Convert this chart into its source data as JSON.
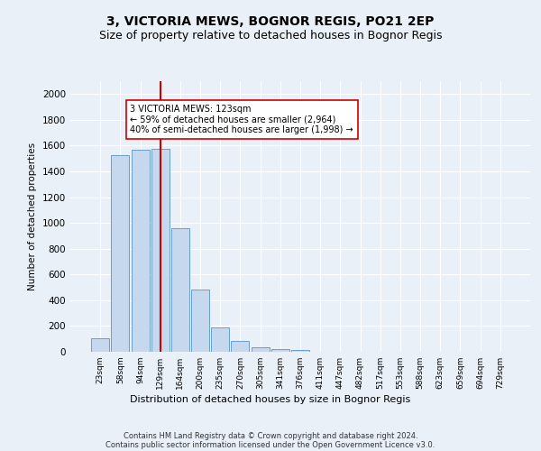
{
  "title1": "3, VICTORIA MEWS, BOGNOR REGIS, PO21 2EP",
  "title2": "Size of property relative to detached houses in Bognor Regis",
  "xlabel": "Distribution of detached houses by size in Bognor Regis",
  "ylabel": "Number of detached properties",
  "categories": [
    "23sqm",
    "58sqm",
    "94sqm",
    "129sqm",
    "164sqm",
    "200sqm",
    "235sqm",
    "270sqm",
    "305sqm",
    "341sqm",
    "376sqm",
    "411sqm",
    "447sqm",
    "482sqm",
    "517sqm",
    "553sqm",
    "588sqm",
    "623sqm",
    "659sqm",
    "694sqm",
    "729sqm"
  ],
  "values": [
    107,
    1527,
    1567,
    1577,
    960,
    483,
    192,
    85,
    35,
    20,
    13,
    0,
    0,
    0,
    0,
    0,
    0,
    0,
    0,
    0,
    0
  ],
  "bar_color": "#c5d8ed",
  "bar_edge_color": "#6a9fc8",
  "vline_x_index": 3,
  "vline_color": "#cc0000",
  "annotation_line1": "3 VICTORIA MEWS: 123sqm",
  "annotation_line2": "← 59% of detached houses are smaller (2,964)",
  "annotation_line3": "40% of semi-detached houses are larger (1,998) →",
  "annotation_box_color": "#ffffff",
  "annotation_box_edge_color": "#cc0000",
  "ylim": [
    0,
    2100
  ],
  "yticks": [
    0,
    200,
    400,
    600,
    800,
    1000,
    1200,
    1400,
    1600,
    1800,
    2000
  ],
  "footer1": "Contains HM Land Registry data © Crown copyright and database right 2024.",
  "footer2": "Contains public sector information licensed under the Open Government Licence v3.0.",
  "bg_color": "#eaf0f8",
  "grid_color": "#ffffff",
  "title1_fontsize": 10,
  "title2_fontsize": 9
}
